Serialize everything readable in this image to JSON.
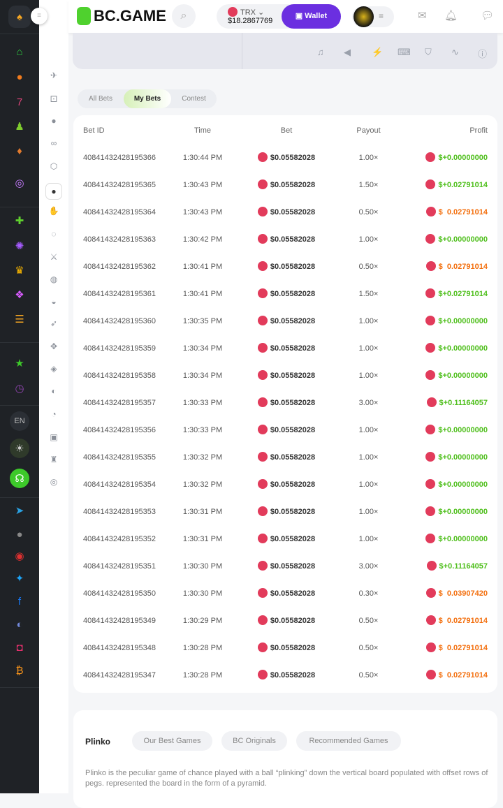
{
  "header": {
    "logo": "BC.GAME",
    "currency": "TRX",
    "balance": "$18.2867769",
    "wallet_label": "Wallet",
    "chat_badge": "5"
  },
  "bet_tabs": [
    "All Bets",
    "My Bets",
    "Contest"
  ],
  "active_tab": "My Bets",
  "table": {
    "columns": [
      "Bet ID",
      "Time",
      "Bet",
      "Payout",
      "Profit"
    ],
    "rows": [
      {
        "id": "40841432428195366",
        "time": "1:30:44 PM",
        "bet": "$0.05582028",
        "payout": "1.00×",
        "profit": "$+0.00000000",
        "win": true
      },
      {
        "id": "40841432428195365",
        "time": "1:30:43 PM",
        "bet": "$0.05582028",
        "payout": "1.50×",
        "profit": "$+0.02791014",
        "win": true
      },
      {
        "id": "40841432428195364",
        "time": "1:30:43 PM",
        "bet": "$0.05582028",
        "payout": "0.50×",
        "profit": "$  0.02791014",
        "win": false
      },
      {
        "id": "40841432428195363",
        "time": "1:30:42 PM",
        "bet": "$0.05582028",
        "payout": "1.00×",
        "profit": "$+0.00000000",
        "win": true
      },
      {
        "id": "40841432428195362",
        "time": "1:30:41 PM",
        "bet": "$0.05582028",
        "payout": "0.50×",
        "profit": "$  0.02791014",
        "win": false
      },
      {
        "id": "40841432428195361",
        "time": "1:30:41 PM",
        "bet": "$0.05582028",
        "payout": "1.50×",
        "profit": "$+0.02791014",
        "win": true
      },
      {
        "id": "40841432428195360",
        "time": "1:30:35 PM",
        "bet": "$0.05582028",
        "payout": "1.00×",
        "profit": "$+0.00000000",
        "win": true
      },
      {
        "id": "40841432428195359",
        "time": "1:30:34 PM",
        "bet": "$0.05582028",
        "payout": "1.00×",
        "profit": "$+0.00000000",
        "win": true
      },
      {
        "id": "40841432428195358",
        "time": "1:30:34 PM",
        "bet": "$0.05582028",
        "payout": "1.00×",
        "profit": "$+0.00000000",
        "win": true
      },
      {
        "id": "40841432428195357",
        "time": "1:30:33 PM",
        "bet": "$0.05582028",
        "payout": "3.00×",
        "profit": "$+0.11164057",
        "win": true
      },
      {
        "id": "40841432428195356",
        "time": "1:30:33 PM",
        "bet": "$0.05582028",
        "payout": "1.00×",
        "profit": "$+0.00000000",
        "win": true
      },
      {
        "id": "40841432428195355",
        "time": "1:30:32 PM",
        "bet": "$0.05582028",
        "payout": "1.00×",
        "profit": "$+0.00000000",
        "win": true
      },
      {
        "id": "40841432428195354",
        "time": "1:30:32 PM",
        "bet": "$0.05582028",
        "payout": "1.00×",
        "profit": "$+0.00000000",
        "win": true
      },
      {
        "id": "40841432428195353",
        "time": "1:30:31 PM",
        "bet": "$0.05582028",
        "payout": "1.00×",
        "profit": "$+0.00000000",
        "win": true
      },
      {
        "id": "40841432428195352",
        "time": "1:30:31 PM",
        "bet": "$0.05582028",
        "payout": "1.00×",
        "profit": "$+0.00000000",
        "win": true
      },
      {
        "id": "40841432428195351",
        "time": "1:30:30 PM",
        "bet": "$0.05582028",
        "payout": "3.00×",
        "profit": "$+0.11164057",
        "win": true
      },
      {
        "id": "40841432428195350",
        "time": "1:30:30 PM",
        "bet": "$0.05582028",
        "payout": "0.30×",
        "profit": "$  0.03907420",
        "win": false
      },
      {
        "id": "40841432428195349",
        "time": "1:30:29 PM",
        "bet": "$0.05582028",
        "payout": "0.50×",
        "profit": "$  0.02791014",
        "win": false
      },
      {
        "id": "40841432428195348",
        "time": "1:30:28 PM",
        "bet": "$0.05582028",
        "payout": "0.50×",
        "profit": "$  0.02791014",
        "win": false
      },
      {
        "id": "40841432428195347",
        "time": "1:30:28 PM",
        "bet": "$0.05582028",
        "payout": "0.50×",
        "profit": "$  0.02791014",
        "win": false
      }
    ]
  },
  "info": {
    "title": "Plinko",
    "pills": [
      "Our Best Games",
      "BC Originals",
      "Recommended Games"
    ],
    "description": "Plinko is the peculiar game of chance played with a ball “plinking” down the vertical board populated with offset rows of pegs. represented the board in the form of a pyramid."
  },
  "sidebar": {
    "language": "EN"
  },
  "colors": {
    "win": "#4fbf1c",
    "loss": "#f36f0e",
    "wallet": "#6b2fe0",
    "brand": "#4fd12e"
  }
}
